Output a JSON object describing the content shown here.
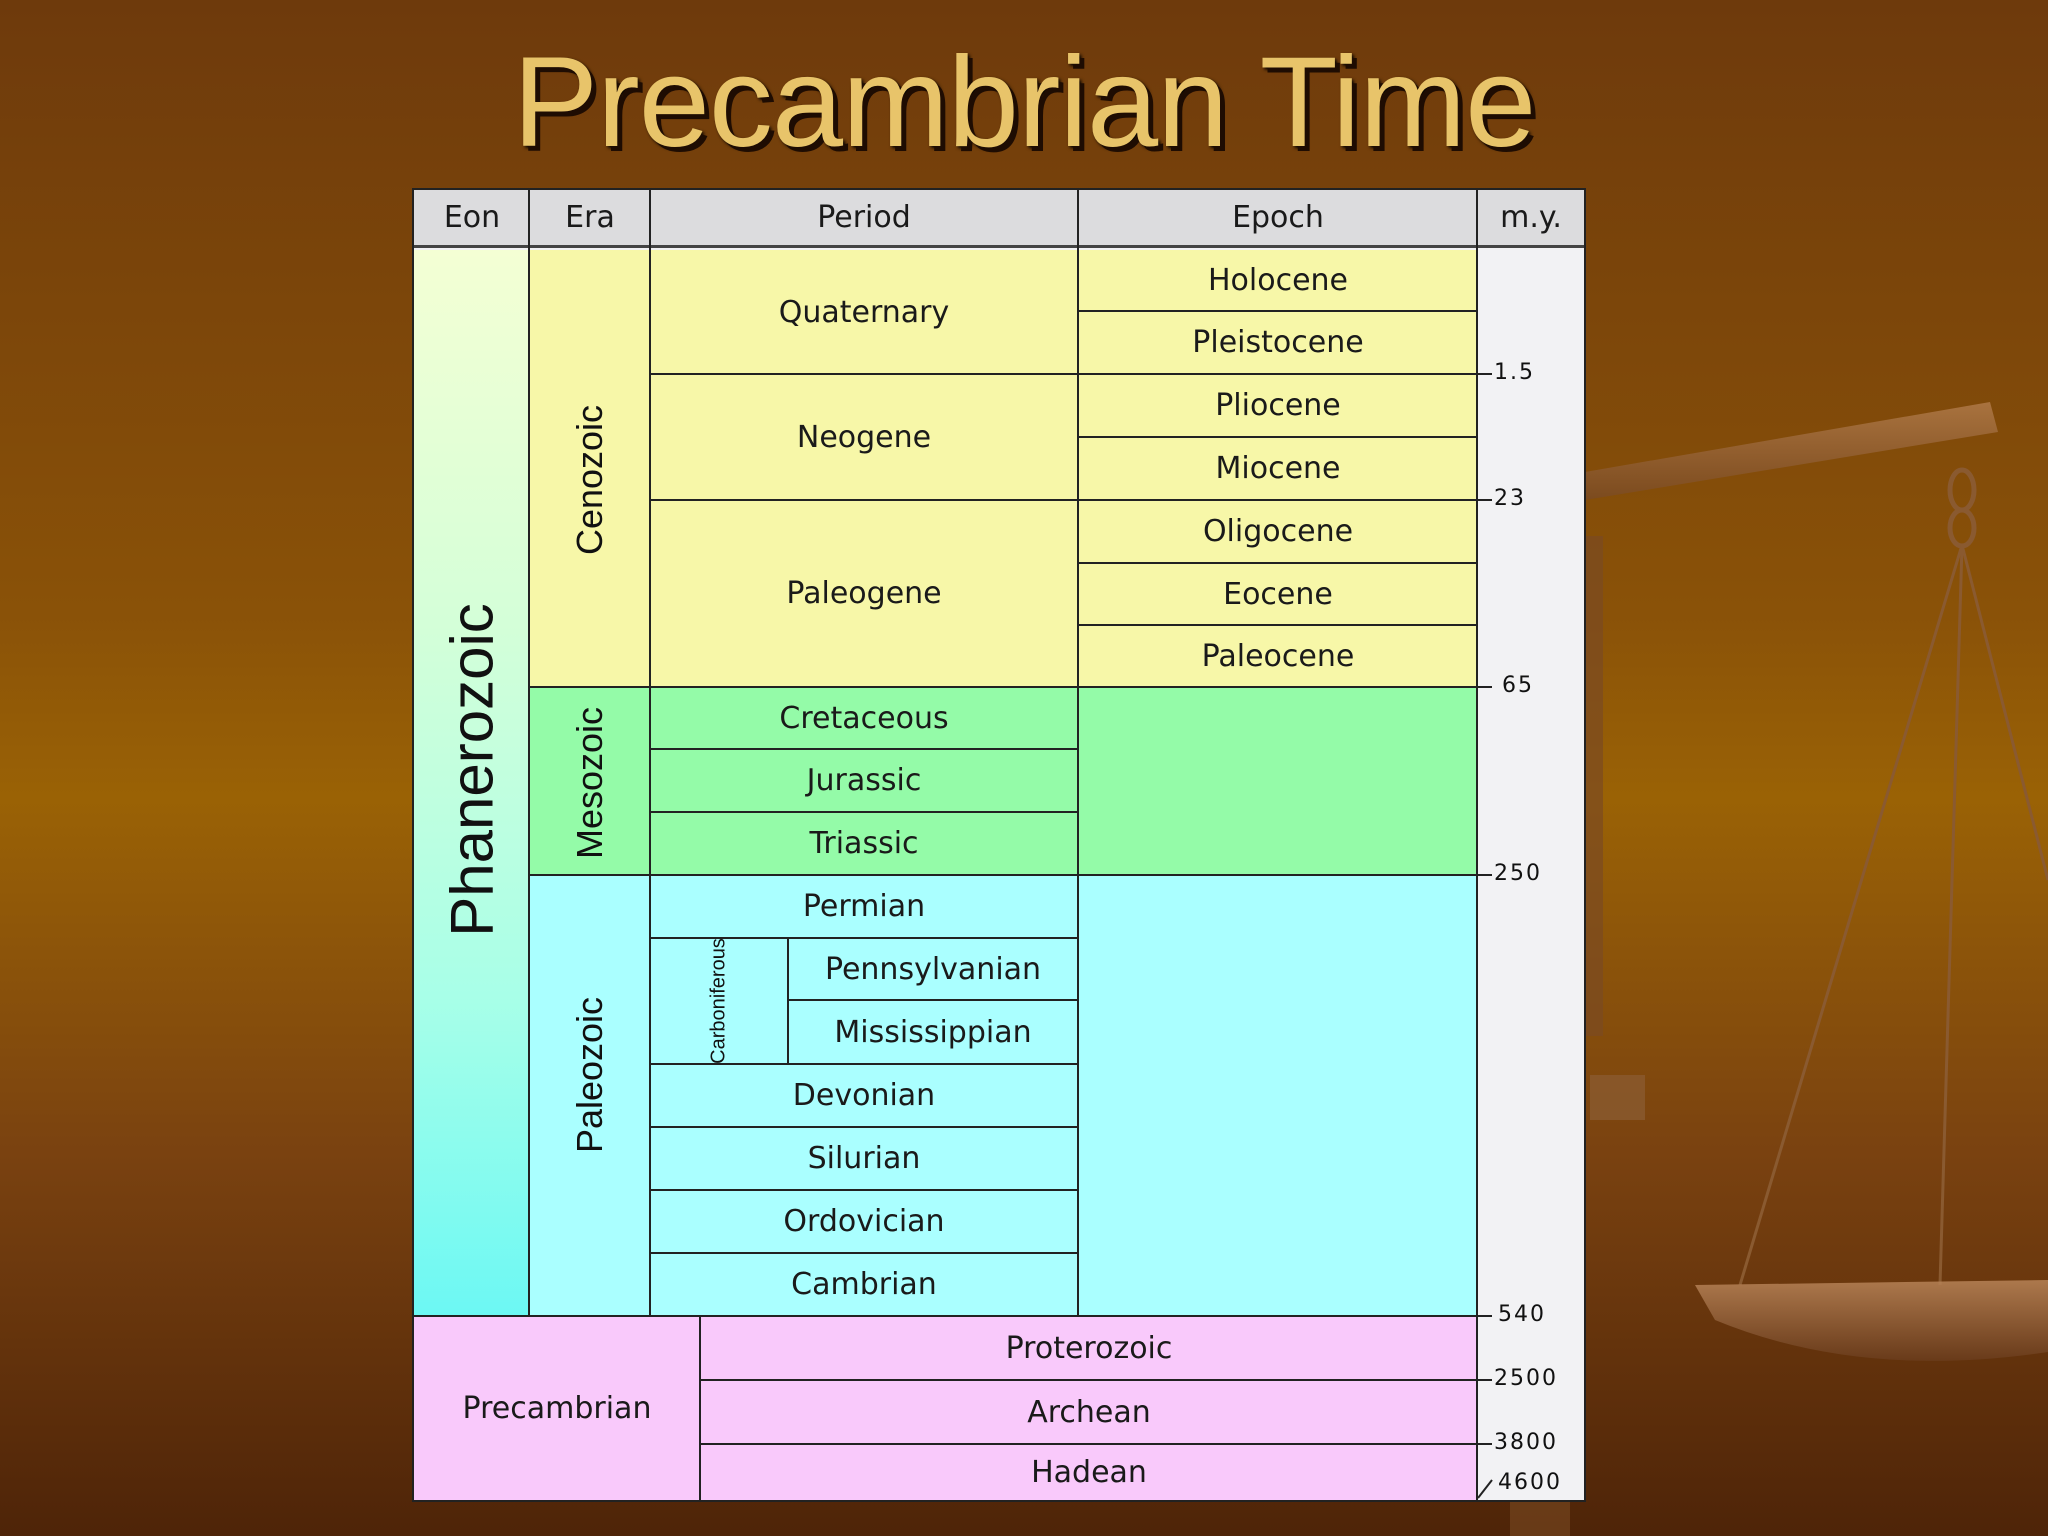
{
  "slide": {
    "title": "Precambrian Time",
    "decoration": "balance-scale-icon"
  },
  "table": {
    "headers": {
      "eon": "Eon",
      "era": "Era",
      "period": "Period",
      "epoch": "Epoch",
      "my": "m.y."
    },
    "eons": {
      "phanerozoic": "Phanerozoic",
      "precambrian": "Precambrian"
    },
    "eras": {
      "cenozoic": "Cenozoic",
      "mesozoic": "Mesozoic",
      "paleozoic": "Paleozoic"
    },
    "periods": {
      "quaternary": "Quaternary",
      "neogene": "Neogene",
      "paleogene": "Paleogene",
      "cretaceous": "Cretaceous",
      "jurassic": "Jurassic",
      "triassic": "Triassic",
      "permian": "Permian",
      "carboniferous": "Carboniferous",
      "pennsylvanian": "Pennsylvanian",
      "mississippian": "Mississippian",
      "devonian": "Devonian",
      "silurian": "Silurian",
      "ordovician": "Ordovician",
      "cambrian": "Cambrian"
    },
    "epochs": {
      "holocene": "Holocene",
      "pleistocene": "Pleistocene",
      "pliocene": "Pliocene",
      "miocene": "Miocene",
      "oligocene": "Oligocene",
      "eocene": "Eocene",
      "paleocene": "Paleocene"
    },
    "precambrian_eons": {
      "proterozoic": "Proterozoic",
      "archean": "Archean",
      "hadean": "Hadean"
    },
    "boundaries_my": {
      "b1": "1.5",
      "b2": "23",
      "b3": "65",
      "b4": "250",
      "b5": "540",
      "b6": "2500",
      "b7": "3800",
      "b8": "4600"
    },
    "colors": {
      "cenozoic": "#f7f7a8",
      "mesozoic": "#94fba8",
      "paleozoic": "#aaffff",
      "precambrian": "#f9c9fb",
      "header": "#dcdcde"
    }
  }
}
